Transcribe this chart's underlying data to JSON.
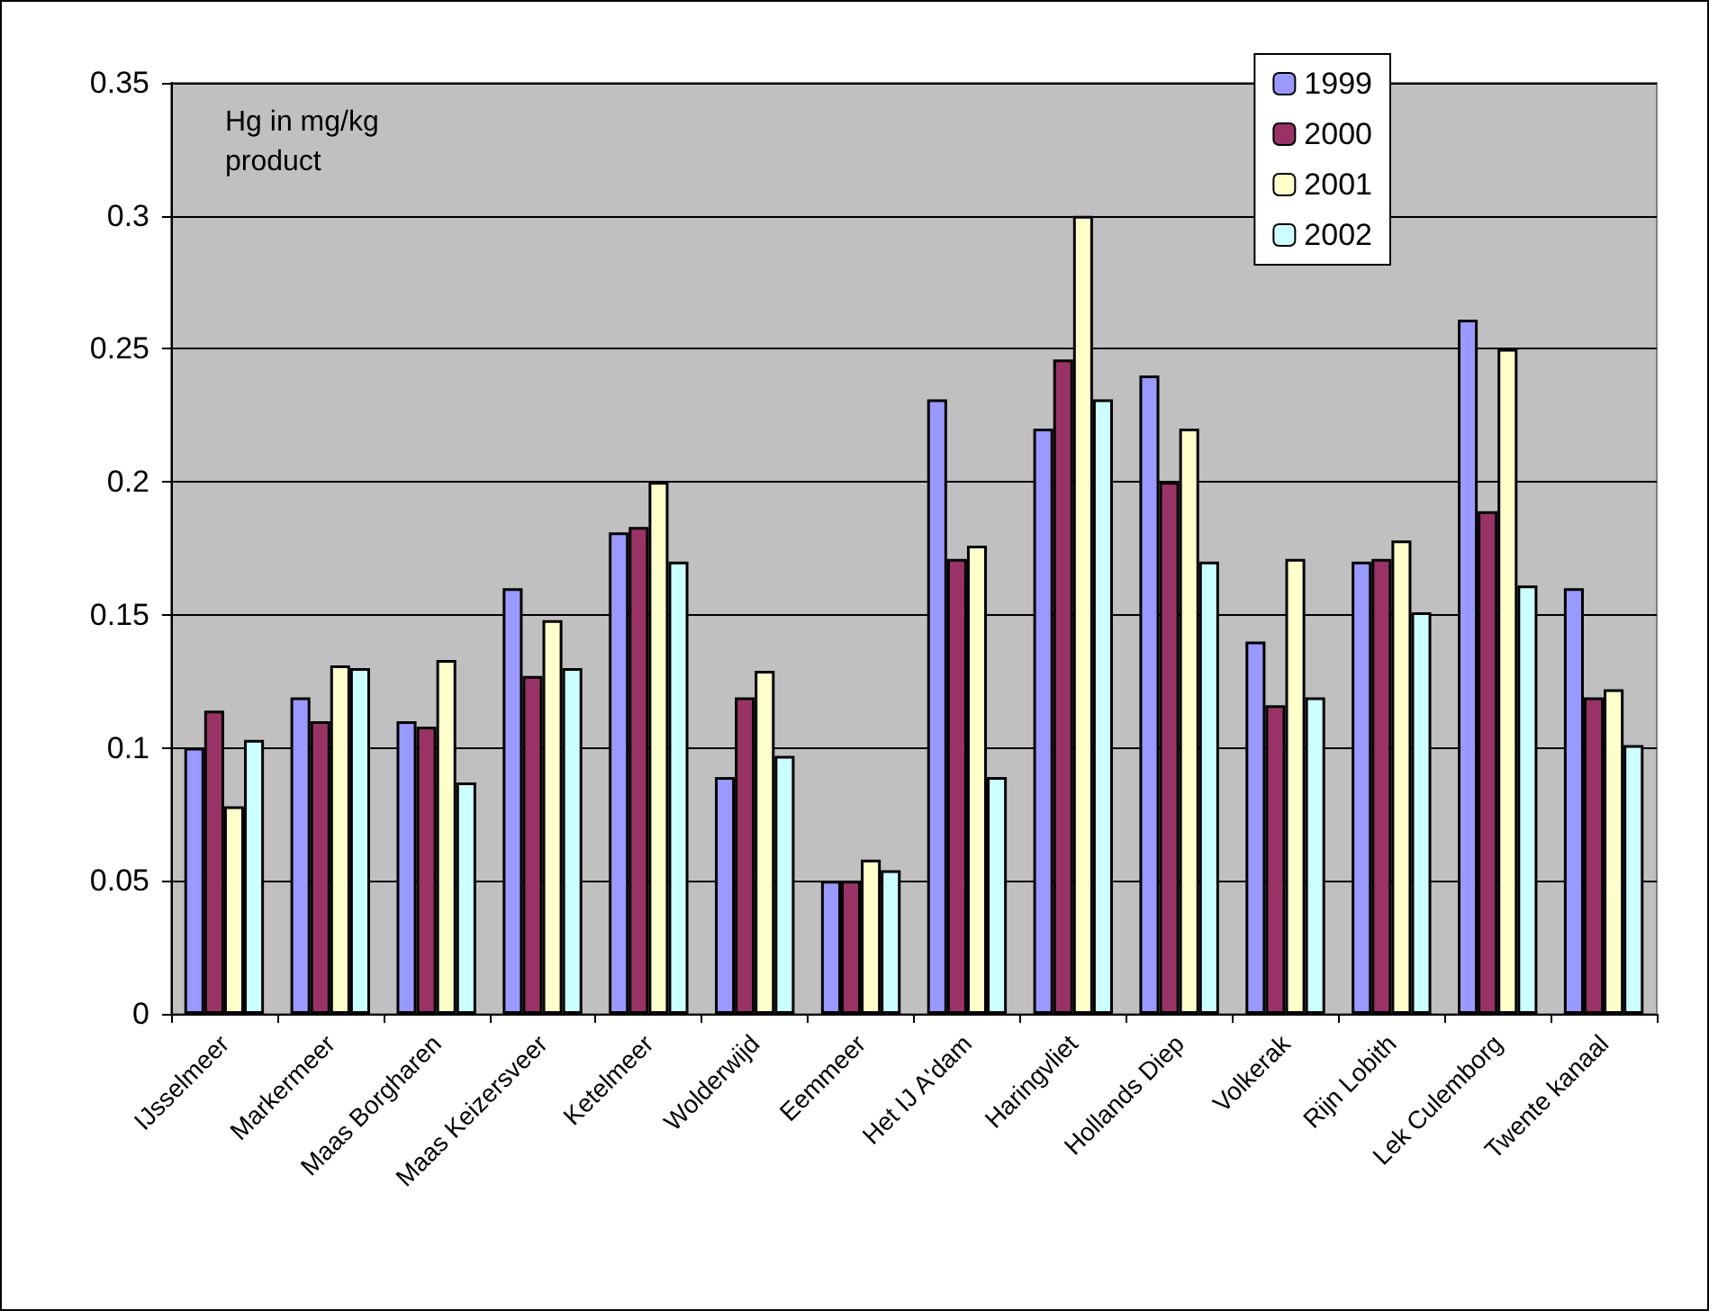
{
  "chart_data": {
    "type": "bar",
    "annotations": [
      "Hg in mg/kg product"
    ],
    "categories": [
      "IJsselmeer",
      "Markermeer",
      "Maas Borgharen",
      "Maas Keizersveer",
      "Ketelmeer",
      "Wolderwijd",
      "Eemmeer",
      "Het IJ A'dam",
      "Haringvliet",
      "Hollands Diep",
      "Volkerak",
      "Rijn Lobith",
      "Lek Culemborg",
      "Twente kanaal"
    ],
    "series": [
      {
        "name": "1999",
        "color": "#9999ff",
        "values": [
          0.1,
          0.119,
          0.11,
          0.16,
          0.181,
          0.089,
          0.05,
          0.231,
          0.22,
          0.24,
          0.14,
          0.17,
          0.261,
          0.16
        ]
      },
      {
        "name": "2000",
        "color": "#993366",
        "values": [
          0.114,
          0.11,
          0.108,
          0.127,
          0.183,
          0.119,
          0.05,
          0.171,
          0.246,
          0.2,
          0.116,
          0.171,
          0.189,
          0.119
        ]
      },
      {
        "name": "2001",
        "color": "#ffffcc",
        "values": [
          0.078,
          0.131,
          0.133,
          0.148,
          0.2,
          0.129,
          0.058,
          0.176,
          0.3,
          0.22,
          0.171,
          0.178,
          0.25,
          0.122
        ]
      },
      {
        "name": "2002",
        "color": "#ccffff",
        "values": [
          0.103,
          0.13,
          0.087,
          0.13,
          0.17,
          0.097,
          0.054,
          0.089,
          0.231,
          0.17,
          0.119,
          0.151,
          0.161,
          0.101
        ]
      }
    ],
    "ylim": [
      0,
      0.35
    ],
    "yticks": [
      0,
      0.05,
      0.1,
      0.15,
      0.2,
      0.25,
      0.3,
      0.35
    ],
    "grid": "y",
    "legend": "top right"
  }
}
